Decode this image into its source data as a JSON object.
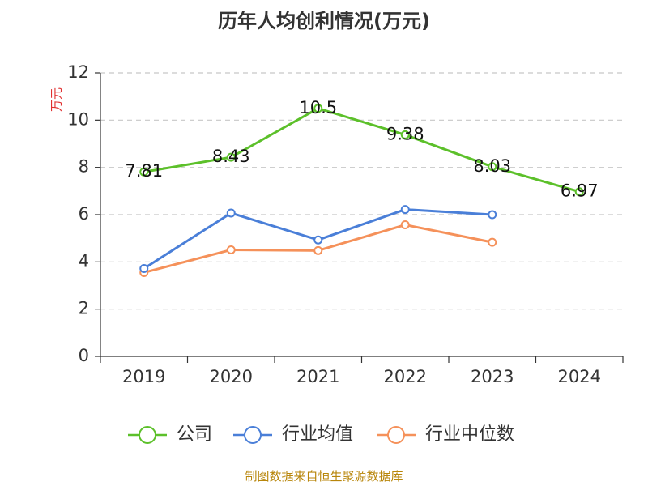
{
  "chart_data": {
    "type": "line",
    "title": "历年人均创利情况(万元)",
    "ylabel": "万元",
    "xlabel": "",
    "categories": [
      "2019",
      "2020",
      "2021",
      "2022",
      "2023",
      "2024"
    ],
    "ylim": [
      0,
      12
    ],
    "yticks": [
      0,
      2,
      4,
      6,
      8,
      10,
      12
    ],
    "grid": true,
    "legend_position": "bottom",
    "series": [
      {
        "name": "公司",
        "color": "#5cc02a",
        "values": [
          7.81,
          8.43,
          10.5,
          9.38,
          8.03,
          6.97
        ],
        "labels": [
          "7.81",
          "8.43",
          "10.5",
          "9.38",
          "8.03",
          "6.97"
        ]
      },
      {
        "name": "行业均值",
        "color": "#4a7fd8",
        "values": [
          3.72,
          6.07,
          4.93,
          6.22,
          6.0,
          null
        ]
      },
      {
        "name": "行业中位数",
        "color": "#f5915a",
        "values": [
          3.55,
          4.51,
          4.48,
          5.57,
          4.83,
          null
        ]
      }
    ]
  },
  "source": "制图数据来自恒生聚源数据库"
}
